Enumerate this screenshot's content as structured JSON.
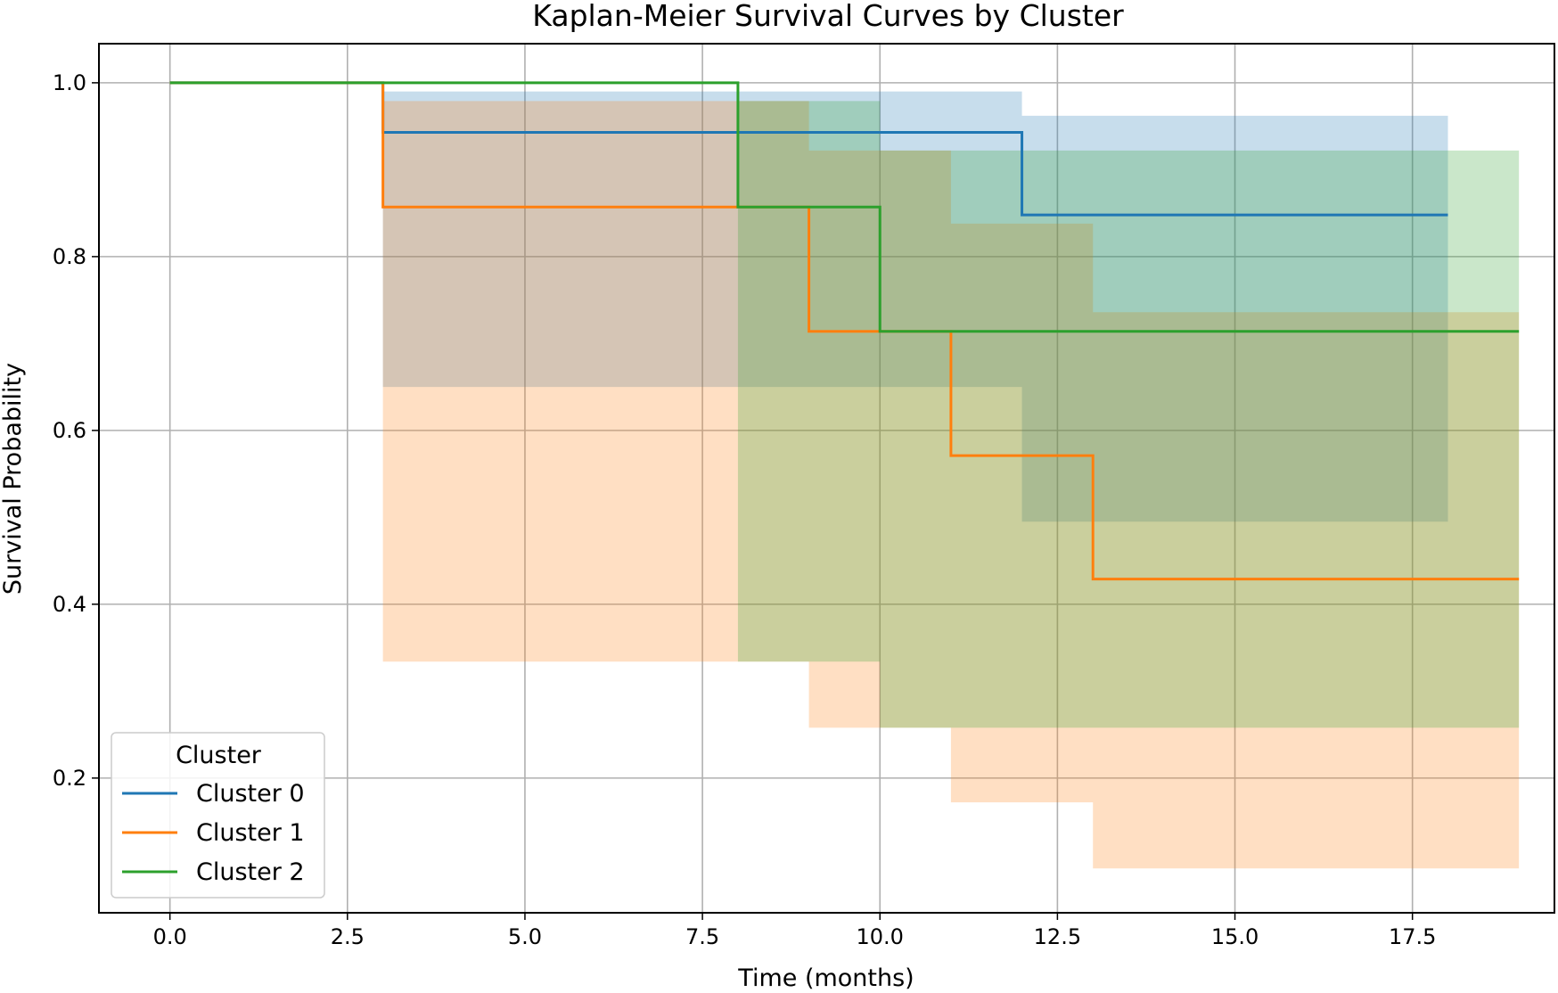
{
  "chart_data": {
    "type": "line",
    "subtype": "step",
    "title": "Kaplan-Meier Survival Curves by Cluster",
    "xlabel": "Time (months)",
    "ylabel": "Survival Probability",
    "xlim": [
      -1,
      19.5
    ],
    "ylim": [
      0.045,
      1.045
    ],
    "xticks": [
      0,
      2.5,
      5,
      7.5,
      10,
      12.5,
      15,
      17.5
    ],
    "xtick_labels": [
      "0.0",
      "2.5",
      "5.0",
      "7.5",
      "10.0",
      "12.5",
      "15.0",
      "17.5"
    ],
    "yticks": [
      0.2,
      0.4,
      0.6,
      0.8,
      1.0
    ],
    "ytick_labels": [
      "0.2",
      "0.4",
      "0.6",
      "0.8",
      "1.0"
    ],
    "grid": true,
    "legend": {
      "title": "Cluster",
      "location": "lower-left"
    },
    "series": [
      {
        "name": "Cluster 0",
        "color": "#1f77b4",
        "times": [
          0,
          3,
          12,
          18
        ],
        "survival": [
          1.0,
          0.943,
          0.848,
          0.848
        ],
        "ci_lower": [
          1.0,
          0.65,
          0.495,
          0.495
        ],
        "ci_upper": [
          1.0,
          0.99,
          0.962,
          0.962
        ]
      },
      {
        "name": "Cluster 1",
        "color": "#ff7f0e",
        "times": [
          0,
          3,
          9,
          11,
          13,
          19
        ],
        "survival": [
          1.0,
          0.857,
          0.714,
          0.571,
          0.429,
          0.429
        ],
        "ci_lower": [
          1.0,
          0.334,
          0.258,
          0.172,
          0.096,
          0.096
        ],
        "ci_upper": [
          1.0,
          0.979,
          0.922,
          0.838,
          0.736,
          0.736
        ]
      },
      {
        "name": "Cluster 2",
        "color": "#2ca02c",
        "times": [
          0,
          8,
          10,
          19
        ],
        "survival": [
          1.0,
          0.857,
          0.714,
          0.714
        ],
        "ci_lower": [
          1.0,
          0.334,
          0.258,
          0.258
        ],
        "ci_upper": [
          1.0,
          0.979,
          0.922,
          0.922
        ]
      }
    ]
  }
}
